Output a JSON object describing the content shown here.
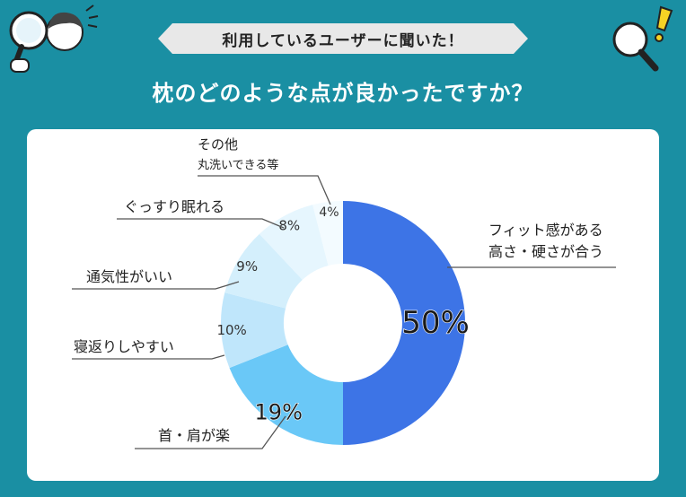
{
  "header": {
    "banner_text": "利用しているユーザーに聞いた！",
    "question": "枕のどのような点が良かったですか？"
  },
  "colors": {
    "background": "#1a8fa3",
    "card": "#ffffff",
    "banner": "#e8e8e8",
    "leader_line": "#555555"
  },
  "icons": [
    "person-with-magnifier-icon",
    "magnifier-exclamation-icon"
  ],
  "chart_data": {
    "type": "pie",
    "style": "donut",
    "unit": "%",
    "start": "top",
    "direction": "clockwise",
    "slices": [
      {
        "label_lines": [
          "フィット感がある",
          "高さ・硬さが合う"
        ],
        "value": 50,
        "value_label": "50%",
        "color": "#3d74e6"
      },
      {
        "label_lines": [
          "首・肩が楽"
        ],
        "value": 19,
        "value_label": "19%",
        "color": "#6ac8f7"
      },
      {
        "label_lines": [
          "寝返りしやすい"
        ],
        "value": 10,
        "value_label": "10%",
        "color": "#bfe6fb"
      },
      {
        "label_lines": [
          "通気性がいい"
        ],
        "value": 9,
        "value_label": "9%",
        "color": "#d4effc"
      },
      {
        "label_lines": [
          "ぐっすり眠れる"
        ],
        "value": 8,
        "value_label": "8%",
        "color": "#e6f6fe"
      },
      {
        "label_lines": [
          "その他",
          "丸洗いできる等"
        ],
        "value": 4,
        "value_label": "4%",
        "color": "#f3fbff"
      }
    ]
  }
}
